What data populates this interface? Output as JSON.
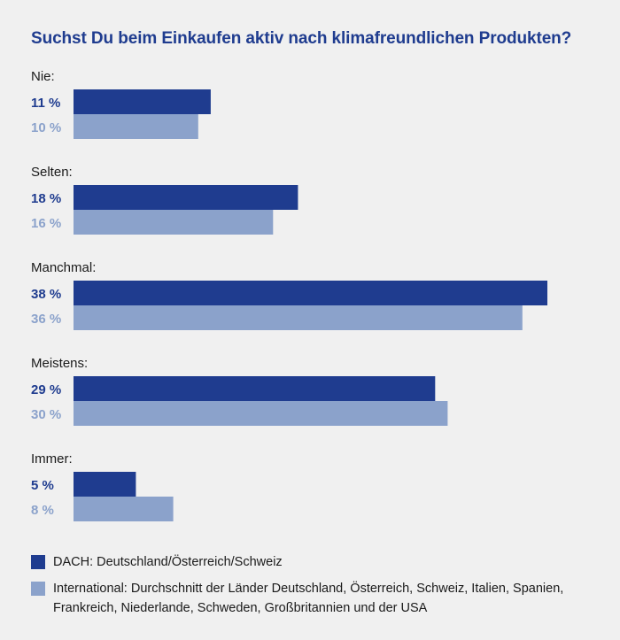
{
  "chart_data": {
    "type": "bar",
    "orientation": "horizontal",
    "title": "Suchst Du beim Einkaufen aktiv nach klimafreundlichen Produkten?",
    "categories": [
      "Nie:",
      "Selten:",
      "Manchmal:",
      "Meistens:",
      "Immer:"
    ],
    "series": [
      {
        "name": "DACH: Deutschland/Österreich/Schweiz",
        "color": "#1f3c8f",
        "values": [
          11,
          18,
          38,
          29,
          5
        ],
        "labels": [
          "11 %",
          "18 %",
          "38 %",
          "29 %",
          "5 %"
        ]
      },
      {
        "name": "International: Durchschnitt der Länder Deutschland, Österreich, Schweiz, Italien, Spanien, Frankreich, Niederlande, Schweden, Großbritannien und der USA",
        "color": "#8ba2cb",
        "values": [
          10,
          16,
          36,
          30,
          8
        ],
        "labels": [
          "10 %",
          "16 %",
          "36 %",
          "30 %",
          "8 %"
        ]
      }
    ],
    "unit": "%",
    "xlim": [
      0,
      38
    ],
    "legend": "bottom"
  }
}
